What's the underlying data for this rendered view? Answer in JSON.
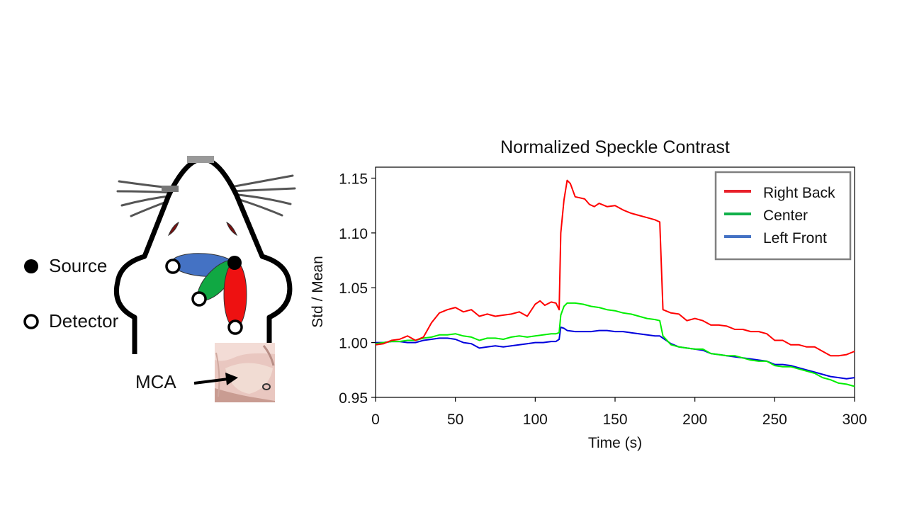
{
  "diagram": {
    "legend_source": "Source",
    "legend_detector": "Detector",
    "mca_label": "MCA",
    "colors": {
      "red": "#ee1111",
      "green": "#10a843",
      "blue": "#4472c4"
    }
  },
  "chart_data": {
    "type": "line",
    "title": "Normalized Speckle Contrast",
    "xlabel": "Time (s)",
    "ylabel": "Std / Mean",
    "xlim": [
      0,
      300
    ],
    "ylim": [
      0.95,
      1.16
    ],
    "xticks": [
      0,
      50,
      100,
      150,
      200,
      250,
      300
    ],
    "yticks": [
      0.95,
      1.0,
      1.05,
      1.1,
      1.15
    ],
    "ytick_labels": [
      "0.95",
      "1.00",
      "1.05",
      "1.10",
      "1.15"
    ],
    "legend_position": "top-right",
    "series": [
      {
        "name": "Right Back",
        "color": "#ff0000",
        "legend_color": "#e8202a",
        "x": [
          0,
          5,
          10,
          15,
          20,
          25,
          30,
          35,
          40,
          45,
          50,
          55,
          60,
          65,
          70,
          75,
          80,
          85,
          90,
          95,
          100,
          103,
          106,
          110,
          113,
          115,
          116,
          118,
          120,
          122,
          125,
          128,
          131,
          134,
          137,
          140,
          145,
          150,
          155,
          160,
          165,
          170,
          175,
          178,
          180,
          185,
          190,
          195,
          200,
          205,
          210,
          215,
          220,
          225,
          230,
          235,
          240,
          245,
          250,
          255,
          260,
          265,
          270,
          275,
          280,
          285,
          290,
          295,
          300
        ],
        "values": [
          0.998,
          0.999,
          1.002,
          1.003,
          1.006,
          1.002,
          1.005,
          1.018,
          1.027,
          1.03,
          1.032,
          1.028,
          1.03,
          1.024,
          1.026,
          1.024,
          1.025,
          1.026,
          1.028,
          1.024,
          1.035,
          1.038,
          1.034,
          1.037,
          1.036,
          1.03,
          1.1,
          1.13,
          1.148,
          1.145,
          1.133,
          1.132,
          1.131,
          1.126,
          1.124,
          1.127,
          1.124,
          1.125,
          1.121,
          1.118,
          1.116,
          1.114,
          1.112,
          1.11,
          1.03,
          1.027,
          1.026,
          1.02,
          1.022,
          1.02,
          1.016,
          1.016,
          1.015,
          1.012,
          1.012,
          1.01,
          1.01,
          1.008,
          1.002,
          1.002,
          0.998,
          0.998,
          0.996,
          0.996,
          0.992,
          0.988,
          0.988,
          0.989,
          0.992
        ]
      },
      {
        "name": "Center",
        "color": "#00ee00",
        "legend_color": "#10b04a",
        "x": [
          0,
          5,
          10,
          15,
          20,
          25,
          30,
          35,
          40,
          45,
          50,
          55,
          60,
          65,
          70,
          75,
          80,
          85,
          90,
          95,
          100,
          105,
          110,
          113,
          115,
          116,
          118,
          120,
          125,
          130,
          135,
          140,
          145,
          150,
          155,
          160,
          165,
          170,
          175,
          178,
          180,
          185,
          190,
          195,
          200,
          205,
          210,
          215,
          220,
          225,
          230,
          235,
          240,
          245,
          250,
          255,
          260,
          265,
          270,
          275,
          280,
          285,
          290,
          295,
          300
        ],
        "values": [
          0.999,
          1.0,
          1.001,
          1.001,
          1.002,
          1.002,
          1.004,
          1.005,
          1.007,
          1.007,
          1.008,
          1.006,
          1.005,
          1.002,
          1.004,
          1.004,
          1.003,
          1.005,
          1.006,
          1.005,
          1.006,
          1.007,
          1.008,
          1.008,
          1.009,
          1.025,
          1.033,
          1.036,
          1.036,
          1.035,
          1.033,
          1.032,
          1.03,
          1.029,
          1.027,
          1.026,
          1.024,
          1.022,
          1.021,
          1.02,
          1.006,
          0.998,
          0.996,
          0.995,
          0.994,
          0.994,
          0.99,
          0.989,
          0.988,
          0.988,
          0.986,
          0.984,
          0.983,
          0.983,
          0.979,
          0.978,
          0.978,
          0.976,
          0.974,
          0.972,
          0.968,
          0.966,
          0.963,
          0.962,
          0.96
        ]
      },
      {
        "name": "Left Front",
        "color": "#0000dd",
        "legend_color": "#4472c4",
        "x": [
          0,
          5,
          10,
          15,
          20,
          25,
          30,
          35,
          40,
          45,
          50,
          55,
          60,
          65,
          70,
          75,
          80,
          85,
          90,
          95,
          100,
          105,
          110,
          113,
          115,
          116,
          118,
          120,
          125,
          130,
          135,
          140,
          145,
          150,
          155,
          160,
          165,
          170,
          175,
          178,
          180,
          185,
          190,
          195,
          200,
          205,
          210,
          215,
          220,
          225,
          230,
          235,
          240,
          245,
          250,
          255,
          260,
          265,
          270,
          275,
          280,
          285,
          290,
          295,
          300
        ],
        "values": [
          1.0,
          1.0,
          1.001,
          1.001,
          1.0,
          1.0,
          1.002,
          1.003,
          1.004,
          1.004,
          1.003,
          1.0,
          0.999,
          0.995,
          0.996,
          0.997,
          0.996,
          0.997,
          0.998,
          0.999,
          1.0,
          1.0,
          1.001,
          1.001,
          1.003,
          1.014,
          1.013,
          1.011,
          1.01,
          1.01,
          1.01,
          1.011,
          1.011,
          1.01,
          1.01,
          1.009,
          1.008,
          1.007,
          1.006,
          1.006,
          1.004,
          0.999,
          0.996,
          0.995,
          0.994,
          0.993,
          0.99,
          0.989,
          0.988,
          0.987,
          0.986,
          0.985,
          0.984,
          0.983,
          0.98,
          0.98,
          0.979,
          0.977,
          0.975,
          0.973,
          0.971,
          0.969,
          0.968,
          0.967,
          0.968
        ]
      }
    ]
  }
}
